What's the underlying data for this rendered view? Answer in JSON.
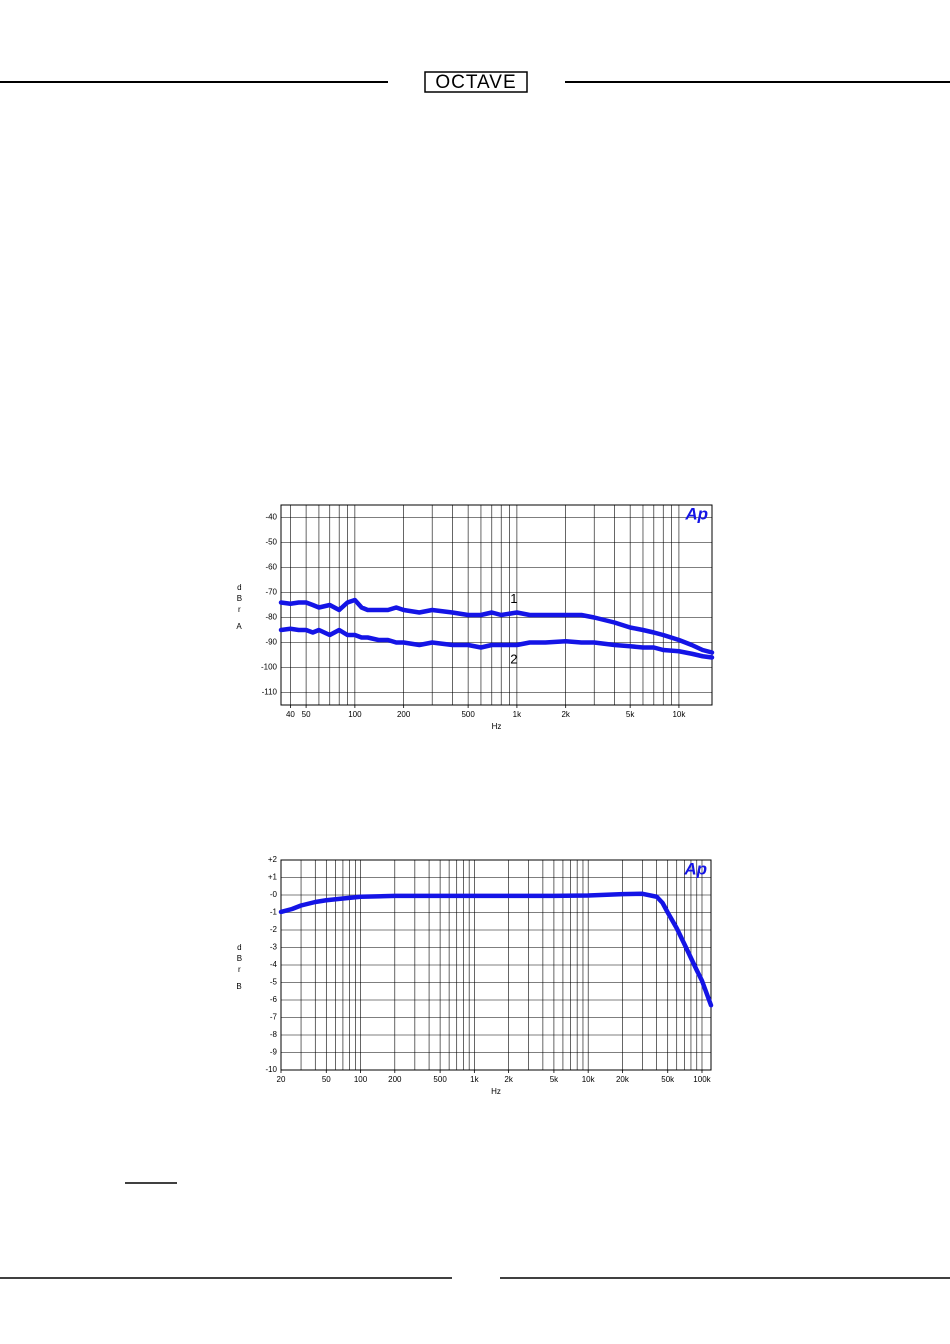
{
  "header": {
    "logo": "OCTAVE"
  },
  "chart_data": [
    {
      "type": "line",
      "logo": "Ap",
      "xlabel": "Hz",
      "ylabel": "dBr",
      "panel": "A",
      "xscale": "log",
      "grid": true,
      "xlim": [
        35,
        16000
      ],
      "ylim": [
        -115,
        -35
      ],
      "xticks": [
        40,
        50,
        100,
        200,
        500,
        {
          "value": 1000,
          "label": "1k"
        },
        {
          "value": 2000,
          "label": "2k"
        },
        {
          "value": 5000,
          "label": "5k"
        },
        {
          "value": 10000,
          "label": "10k"
        }
      ],
      "yticks": [
        -40,
        -50,
        -60,
        -70,
        -80,
        -90,
        -100,
        -110
      ],
      "x": [
        35,
        40,
        45,
        50,
        55,
        60,
        70,
        80,
        90,
        100,
        110,
        120,
        140,
        160,
        180,
        200,
        250,
        300,
        400,
        500,
        600,
        700,
        800,
        1000,
        1200,
        1500,
        2000,
        2500,
        3000,
        4000,
        5000,
        6000,
        7000,
        8000,
        10000,
        12000,
        14000,
        16000
      ],
      "series": [
        {
          "name": "1",
          "color": "#1414e6",
          "values": [
            -74,
            -74.5,
            -74,
            -74,
            -75,
            -76,
            -75,
            -77,
            -74,
            -73,
            -76,
            -77,
            -77,
            -77,
            -76,
            -77,
            -78,
            -77,
            -78,
            -79,
            -79,
            -78,
            -79,
            -78,
            -79,
            -79,
            -79,
            -79,
            -80,
            -82,
            -84,
            -85,
            -86,
            -87,
            -89,
            -91,
            -93,
            -94
          ]
        },
        {
          "name": "2",
          "color": "#1414e6",
          "values": [
            -85,
            -84.5,
            -85,
            -85,
            -86,
            -85,
            -87,
            -85,
            -87,
            -87,
            -88,
            -88,
            -89,
            -89,
            -90,
            -90,
            -91,
            -90,
            -91,
            -91,
            -92,
            -91,
            -91,
            -91,
            -90,
            -90,
            -89.5,
            -90,
            -90,
            -91,
            -91.5,
            -92,
            -92,
            -93,
            -93.5,
            -94.5,
            -95.5,
            -96
          ]
        }
      ]
    },
    {
      "type": "line",
      "logo": "Ap",
      "xlabel": "Hz",
      "ylabel": "dBr",
      "panel": "B",
      "xscale": "log",
      "grid": true,
      "xlim": [
        20,
        120000
      ],
      "ylim": [
        -10,
        2
      ],
      "xticks": [
        20,
        50,
        100,
        200,
        500,
        {
          "value": 1000,
          "label": "1k"
        },
        {
          "value": 2000,
          "label": "2k"
        },
        {
          "value": 5000,
          "label": "5k"
        },
        {
          "value": 10000,
          "label": "10k"
        },
        {
          "value": 20000,
          "label": "20k"
        },
        {
          "value": 50000,
          "label": "50k"
        },
        {
          "value": 100000,
          "label": "100k"
        }
      ],
      "yticks": [
        {
          "value": 2,
          "label": "+2"
        },
        {
          "value": 1,
          "label": "+1"
        },
        {
          "value": 0,
          "label": "-0"
        },
        -1,
        -2,
        -3,
        -4,
        -5,
        -6,
        -7,
        -8,
        -9,
        -10
      ],
      "x": [
        20,
        25,
        30,
        40,
        50,
        70,
        100,
        200,
        500,
        1000,
        2000,
        5000,
        10000,
        20000,
        30000,
        40000,
        45000,
        50000,
        60000,
        70000,
        80000,
        90000,
        100000,
        120000
      ],
      "series": [
        {
          "color": "#1414e6",
          "values": [
            -0.97,
            -0.8,
            -0.6,
            -0.4,
            -0.3,
            -0.2,
            -0.1,
            -0.05,
            -0.05,
            -0.05,
            -0.05,
            -0.05,
            -0.03,
            0.05,
            0.07,
            -0.1,
            -0.45,
            -1.0,
            -1.9,
            -2.8,
            -3.6,
            -4.3,
            -4.9,
            -6.3
          ]
        }
      ]
    }
  ]
}
